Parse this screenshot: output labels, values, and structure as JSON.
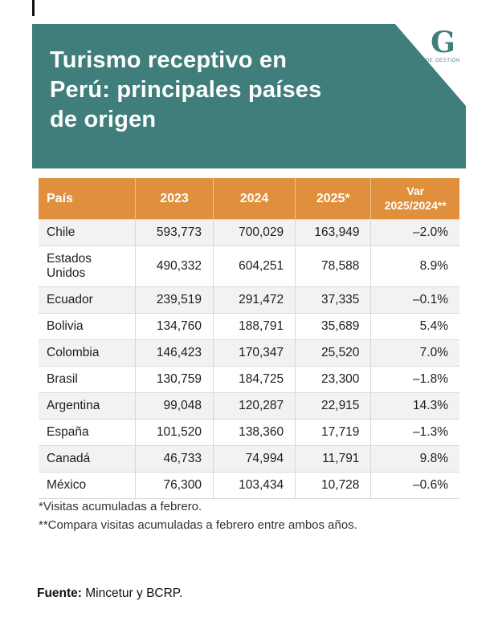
{
  "header": {
    "title_lines": [
      "Turismo receptivo en",
      "Perú: principales países",
      "de origen"
    ],
    "logo": {
      "letter": "G",
      "caption": "DE GESTIÓN"
    }
  },
  "colors": {
    "teal": "#3F7E7A",
    "orange": "#E0903C"
  },
  "chart_data": {
    "type": "table",
    "title": "Turismo receptivo en Perú: principales países de origen",
    "columns": [
      "País",
      "2023",
      "2024",
      "2025*",
      "Var\n2025/2024**"
    ],
    "rows": [
      {
        "country": "Chile",
        "values": [
          "593,773",
          "700,029",
          "163,949",
          "–2.0%"
        ]
      },
      {
        "country": "Estados Unidos",
        "values": [
          "490,332",
          "604,251",
          "78,588",
          "8.9%"
        ]
      },
      {
        "country": "Ecuador",
        "values": [
          "239,519",
          "291,472",
          "37,335",
          "–0.1%"
        ]
      },
      {
        "country": "Bolivia",
        "values": [
          "134,760",
          "188,791",
          "35,689",
          "5.4%"
        ]
      },
      {
        "country": "Colombia",
        "values": [
          "146,423",
          "170,347",
          "25,520",
          "7.0%"
        ]
      },
      {
        "country": "Brasil",
        "values": [
          "130,759",
          "184,725",
          "23,300",
          "–1.8%"
        ]
      },
      {
        "country": "Argentina",
        "values": [
          "99,048",
          "120,287",
          "22,915",
          "14.3%"
        ]
      },
      {
        "country": "España",
        "values": [
          "101,520",
          "138,360",
          "17,719",
          "–1.3%"
        ]
      },
      {
        "country": "Canadá",
        "values": [
          "46,733",
          "74,994",
          "11,791",
          "9.8%"
        ]
      },
      {
        "country": "México",
        "values": [
          "76,300",
          "103,434",
          "10,728",
          "–0.6%"
        ]
      }
    ]
  },
  "footnotes": [
    "*Visitas acumuladas a febrero.",
    "**Compara visitas acumuladas a febrero entre ambos años."
  ],
  "source": {
    "label": "Fuente:",
    "text": " Mincetur y BCRP."
  }
}
